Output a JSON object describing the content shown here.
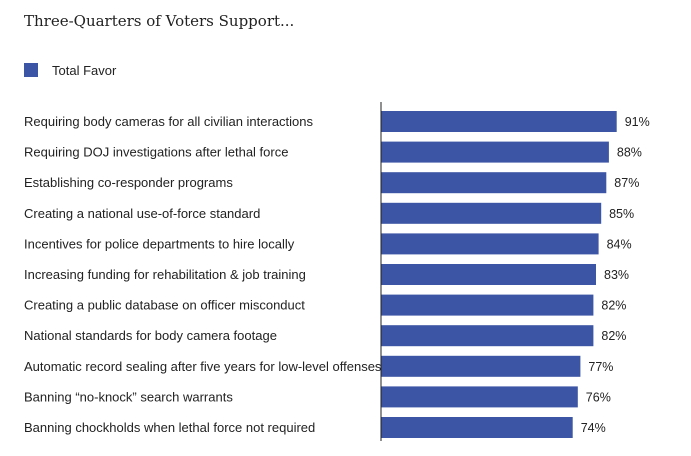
{
  "chart_data": {
    "type": "bar",
    "orientation": "horizontal",
    "title": "Three-Quarters of Voters Support...",
    "legend": {
      "position": "top-left",
      "entries": [
        "Total Favor"
      ]
    },
    "categories": [
      "Requiring body cameras for all civilian interactions",
      "Requiring DOJ investigations after lethal force",
      "Establishing co-responder programs",
      "Creating a national use-of-force standard",
      "Incentives for police departments to hire locally",
      "Increasing funding for rehabilitation & job training",
      "Creating a public database on officer misconduct",
      "National standards for body camera footage",
      "Automatic record sealing after five years for low-level offenses",
      "Banning “no-knock” search warrants",
      "Banning chockholds when lethal force not required"
    ],
    "series": [
      {
        "name": "Total Favor",
        "values": [
          91,
          88,
          87,
          85,
          84,
          83,
          82,
          82,
          77,
          76,
          74
        ],
        "labels": [
          "91%",
          "88%",
          "87%",
          "85%",
          "84%",
          "83%",
          "82%",
          "82%",
          "77%",
          "76%",
          "74%"
        ]
      }
    ],
    "xlim": [
      0,
      100
    ],
    "grid": false,
    "colors": {
      "bar": "#3c55a5",
      "axis": "#222222",
      "text": "#222222"
    }
  }
}
